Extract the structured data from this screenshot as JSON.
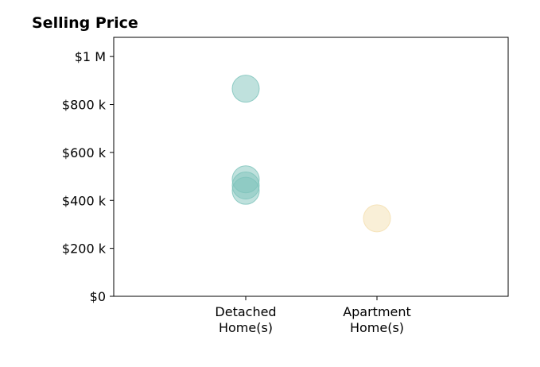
{
  "chart_data": {
    "type": "scatter",
    "title": "Selling Price",
    "xlabel": "",
    "ylabel": "",
    "categories": [
      [
        "Detached",
        "Home(s)"
      ],
      [
        "Apartment",
        "Home(s)"
      ]
    ],
    "ylim": [
      0,
      1080000
    ],
    "y_ticks": [
      {
        "value": 0,
        "label": "$0"
      },
      {
        "value": 200000,
        "label": "$200 k"
      },
      {
        "value": 400000,
        "label": "$400 k"
      },
      {
        "value": 600000,
        "label": "$600 k"
      },
      {
        "value": 800000,
        "label": "$800 k"
      },
      {
        "value": 1000000,
        "label": "$1 M"
      }
    ],
    "grid": false,
    "legend": "none",
    "series": [
      {
        "color": "#7fc4bc",
        "points": [
          {
            "category": 0,
            "y": 866000
          },
          {
            "category": 0,
            "y": 488000
          },
          {
            "category": 0,
            "y": 462000
          },
          {
            "category": 0,
            "y": 440000
          }
        ]
      },
      {
        "color": "#f4dfb0",
        "points": [
          {
            "category": 1,
            "y": 325000
          }
        ]
      }
    ]
  }
}
